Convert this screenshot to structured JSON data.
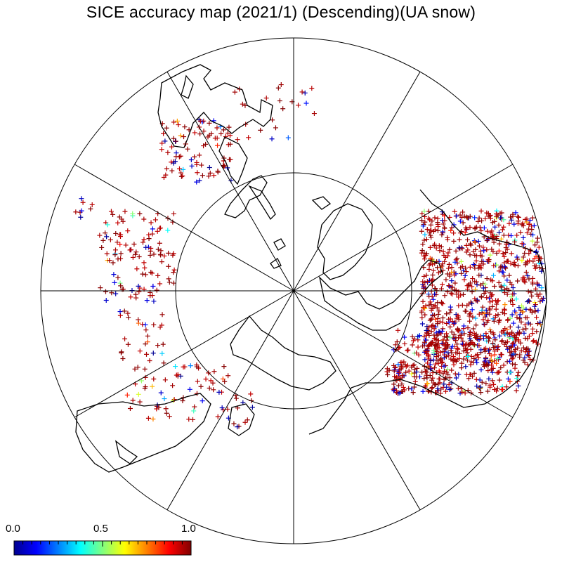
{
  "title": "SICE accuracy map (2021/1) (Descending)(UA snow)",
  "projection": "north-polar-stereographic",
  "graticule": {
    "meridian_step_deg": 30,
    "inner_circle_lat_deg": 60,
    "outer_circle_lat_deg": 0
  },
  "colorbar": {
    "min": 0.0,
    "max": 1.0,
    "ticks": [
      {
        "value": 0.0,
        "label": "0.0"
      },
      {
        "value": 0.5,
        "label": "0.5"
      },
      {
        "value": 1.0,
        "label": "1.0"
      }
    ],
    "colormap": [
      "#00008f",
      "#0000ff",
      "#0080ff",
      "#00ffff",
      "#80ff80",
      "#ffff00",
      "#ff8000",
      "#ff0000",
      "#800000"
    ]
  },
  "marker": "plus",
  "colors": {
    "coast": "#000000",
    "grid": "#000000",
    "dominant_point": "#8b0000"
  }
}
